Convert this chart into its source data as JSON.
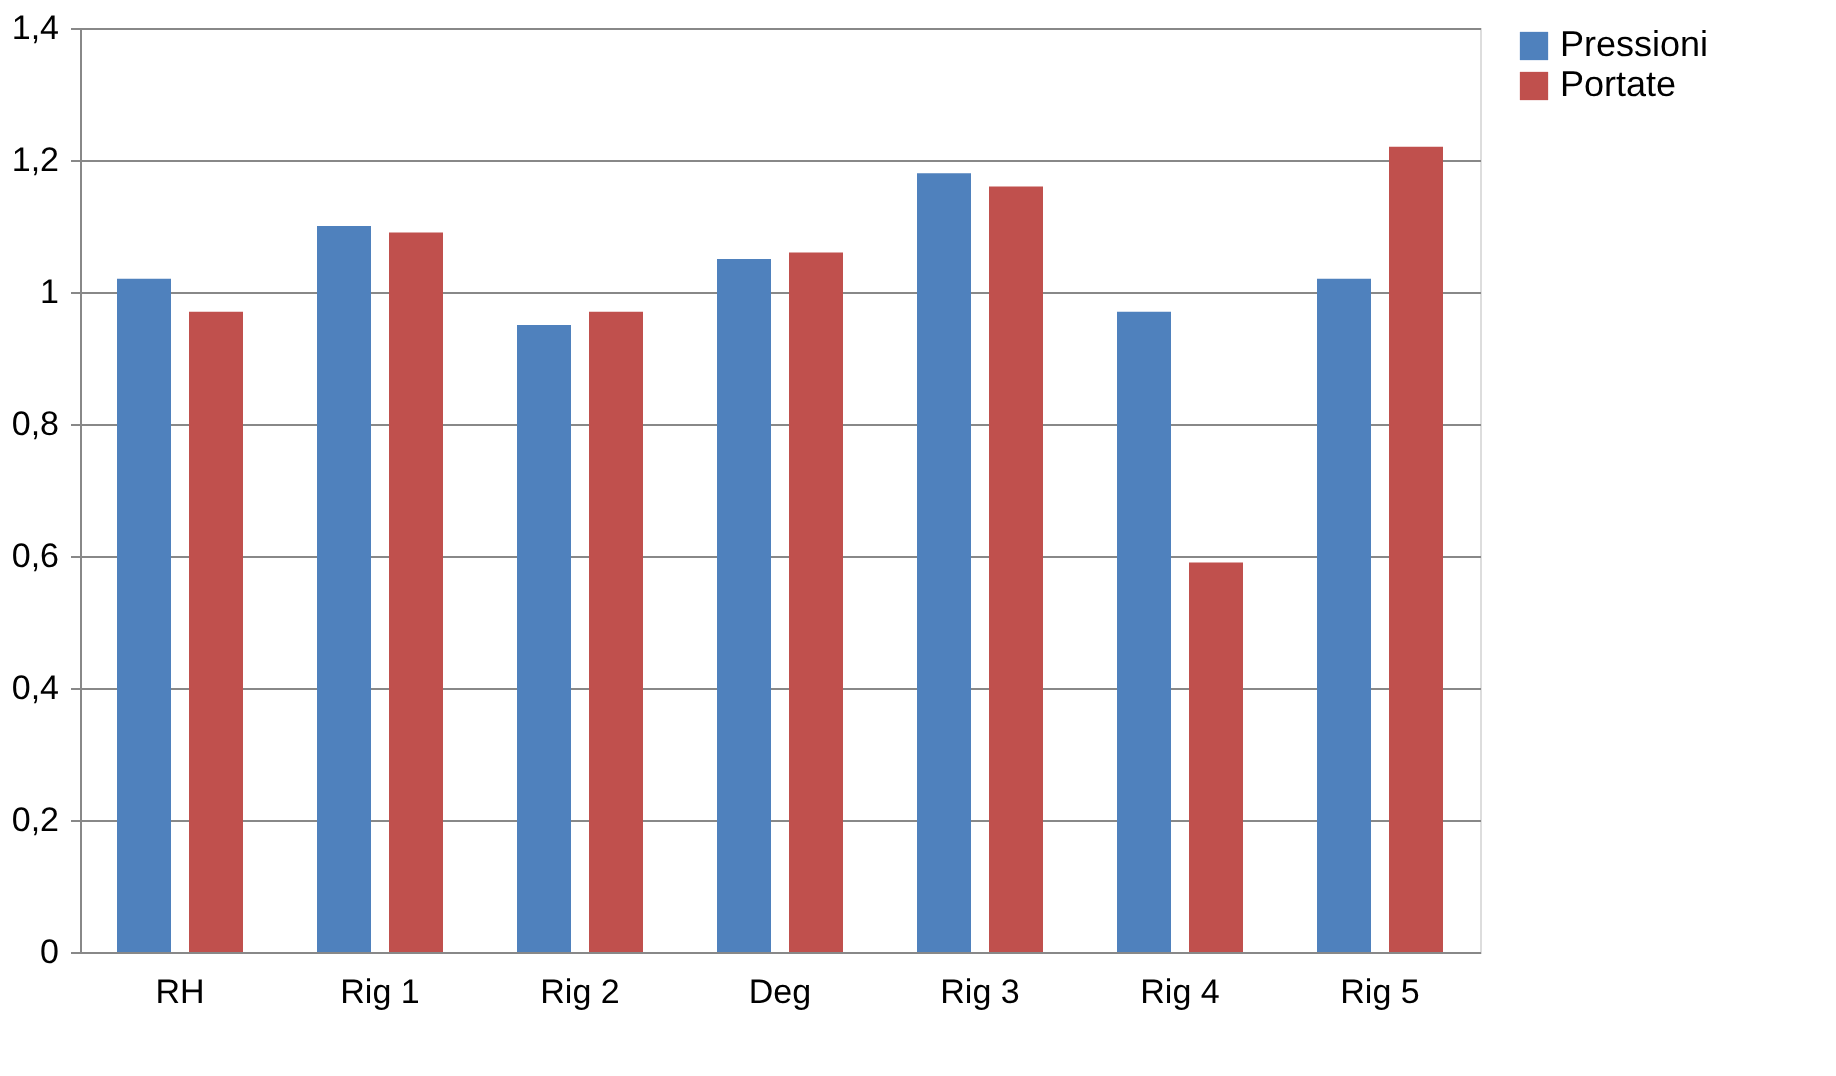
{
  "chart_data": {
    "type": "bar",
    "categories": [
      "RH",
      "Rig 1",
      "Rig 2",
      "Deg",
      "Rig 3",
      "Rig 4",
      "Rig 5"
    ],
    "series": [
      {
        "name": "Pressioni",
        "color": "#4f81bd",
        "values": [
          1.02,
          1.1,
          0.95,
          1.05,
          1.18,
          0.97,
          1.02
        ]
      },
      {
        "name": "Portate",
        "color": "#c0504d",
        "values": [
          0.97,
          1.09,
          0.97,
          1.06,
          1.16,
          0.59,
          1.22
        ]
      }
    ],
    "ylim": [
      0,
      1.4
    ],
    "yticks": [
      {
        "value": 0,
        "label": "0"
      },
      {
        "value": 0.2,
        "label": "0,2"
      },
      {
        "value": 0.4,
        "label": "0,4"
      },
      {
        "value": 0.6,
        "label": "0,6"
      },
      {
        "value": 0.8,
        "label": "0,8"
      },
      {
        "value": 1,
        "label": "1"
      },
      {
        "value": 1.2,
        "label": "1,2"
      },
      {
        "value": 1.4,
        "label": "1,4"
      }
    ],
    "grid": "y",
    "legend": "right"
  }
}
